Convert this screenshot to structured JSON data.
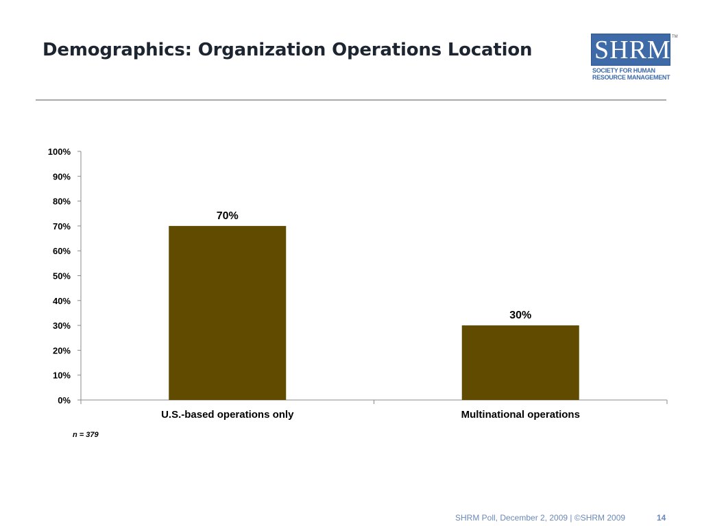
{
  "slide": {
    "title": "Demographics: Organization Operations Location",
    "note": "n = 379",
    "footer": "SHRM Poll, December 2, 2009 | ©SHRM 2009",
    "page_number": "14"
  },
  "logo": {
    "letters": "SHRM",
    "tm": "TM",
    "line1": "Society for Human",
    "line2": "Resource Management"
  },
  "colors": {
    "bar": "#614b00",
    "axis": "#8a8a8a",
    "brand": "#3e6aa8"
  },
  "chart_data": {
    "type": "bar",
    "categories": [
      "U.S.-based operations only",
      "Multinational operations"
    ],
    "values": [
      70,
      30
    ],
    "value_labels": [
      "70%",
      "30%"
    ],
    "ylim": [
      0,
      100
    ],
    "yticks": [
      0,
      10,
      20,
      30,
      40,
      50,
      60,
      70,
      80,
      90,
      100
    ],
    "ytick_labels": [
      "0%",
      "10%",
      "20%",
      "30%",
      "40%",
      "50%",
      "60%",
      "70%",
      "80%",
      "90%",
      "100%"
    ],
    "title": "",
    "xlabel": "",
    "ylabel": "",
    "grid": false,
    "legend": "none"
  }
}
